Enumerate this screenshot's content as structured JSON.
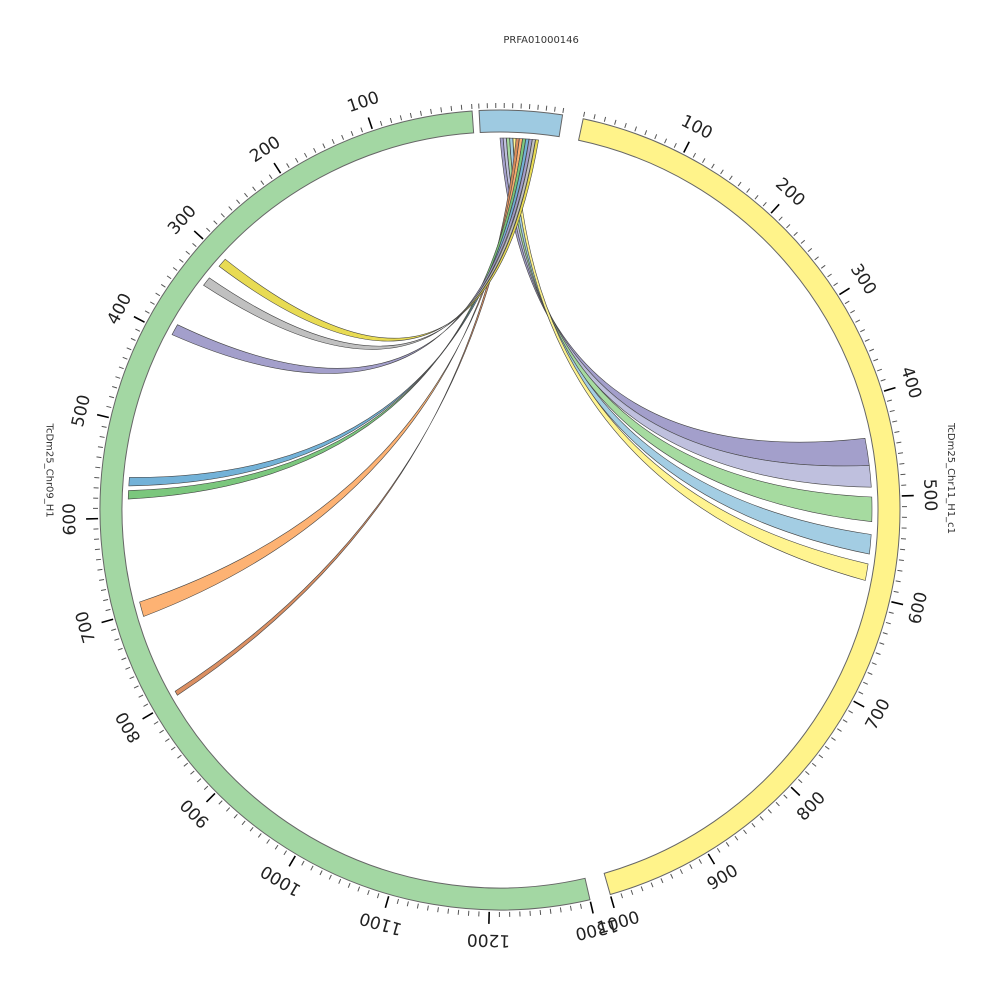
{
  "diagram": {
    "type": "circos",
    "segments": [
      {
        "id": "PRFA",
        "name": "PRFA01000146",
        "color": "#9ecae1",
        "labeled_ticks": []
      },
      {
        "id": "chr11",
        "name": "TcDm25_Chr11_H1_c1",
        "color": "#fff38a",
        "labeled_ticks": [
          "100",
          "200",
          "300",
          "400",
          "500",
          "600",
          "700",
          "800",
          "900",
          "1000"
        ]
      },
      {
        "id": "chr09",
        "name": "TcDm25_Chr09_H1",
        "color": "#a3d7a3",
        "labeled_ticks": [
          "100",
          "200",
          "300",
          "400",
          "500",
          "600",
          "700",
          "800",
          "900",
          "1000",
          "1100",
          "1200",
          "1300"
        ]
      }
    ],
    "links": [
      {
        "name": "link-gray-purple",
        "color": "#9e9ac8",
        "target": "chr11",
        "from_unit": 440,
        "to_unit": 468
      },
      {
        "name": "link-lavender",
        "color": "#bcbddc",
        "target": "chr11",
        "from_unit": 468,
        "to_unit": 490
      },
      {
        "name": "link-green",
        "color": "#a1d99b",
        "target": "chr11",
        "from_unit": 500,
        "to_unit": 525
      },
      {
        "name": "link-blue",
        "color": "#9ecae1",
        "target": "chr11",
        "from_unit": 538,
        "to_unit": 558
      },
      {
        "name": "link-yellow",
        "color": "#fff38a",
        "target": "chr11",
        "from_unit": 568,
        "to_unit": 585
      },
      {
        "name": "link-brown",
        "color": "#d9895a",
        "target": "chr09",
        "from_unit": 792,
        "to_unit": 797
      },
      {
        "name": "link-orange",
        "color": "#fdae6b",
        "target": "chr09",
        "from_unit": 690,
        "to_unit": 706
      },
      {
        "name": "link-dark-green",
        "color": "#74c476",
        "target": "chr09",
        "from_unit": 571,
        "to_unit": 580
      },
      {
        "name": "link-steel-blue",
        "color": "#6baed6",
        "target": "chr09",
        "from_unit": 557,
        "to_unit": 566
      },
      {
        "name": "link-purple",
        "color": "#9e9ac8",
        "target": "chr09",
        "from_unit": 386,
        "to_unit": 398
      },
      {
        "name": "link-silver",
        "color": "#bdbdbd",
        "target": "chr09",
        "from_unit": 326,
        "to_unit": 336
      },
      {
        "name": "link-gold",
        "color": "#e7d94a",
        "target": "chr09",
        "from_unit": 300,
        "to_unit": 310
      }
    ]
  }
}
